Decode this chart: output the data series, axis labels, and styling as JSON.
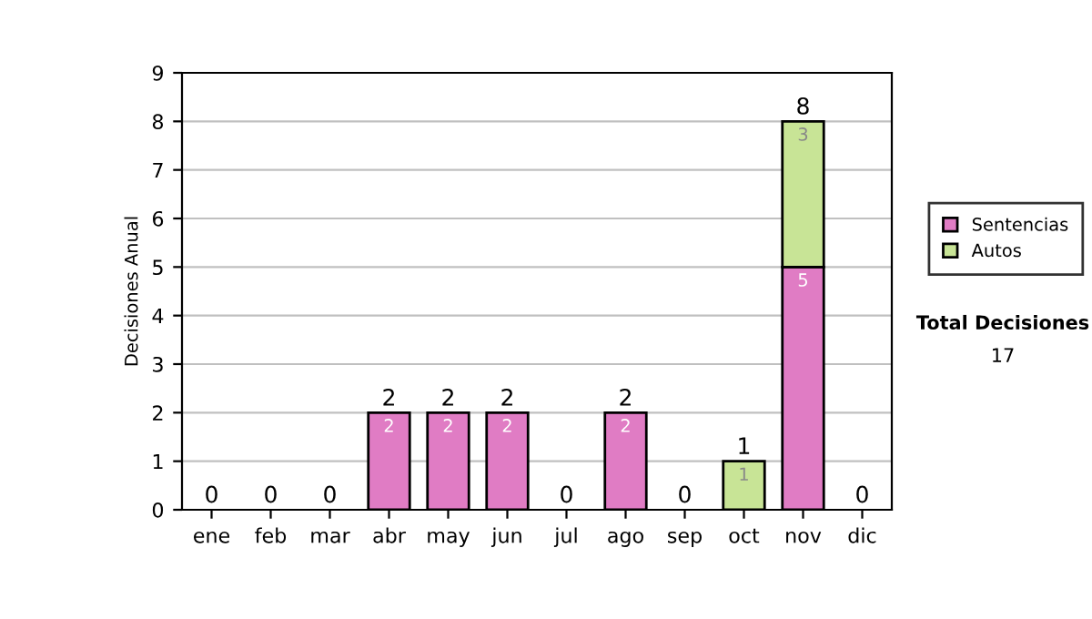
{
  "chart_data": {
    "type": "bar",
    "stacked": true,
    "ylabel": "Decisiones Anual",
    "categories": [
      "ene",
      "feb",
      "mar",
      "abr",
      "may",
      "jun",
      "jul",
      "ago",
      "sep",
      "oct",
      "nov",
      "dic"
    ],
    "series": [
      {
        "name": "Sentencias",
        "color": "#e07cc4",
        "values": [
          0,
          0,
          0,
          2,
          2,
          2,
          0,
          2,
          0,
          0,
          5,
          0
        ],
        "value_labels": [
          null,
          null,
          null,
          "2",
          "2",
          "2",
          null,
          "2",
          null,
          null,
          "5",
          null
        ]
      },
      {
        "name": "Autos",
        "color": "#c8e496",
        "values": [
          0,
          0,
          0,
          0,
          0,
          0,
          0,
          0,
          0,
          1,
          3,
          0
        ],
        "value_labels": [
          null,
          null,
          null,
          null,
          null,
          null,
          null,
          null,
          null,
          "1",
          "3",
          null
        ]
      }
    ],
    "totals": [
      "0",
      "0",
      "0",
      "2",
      "2",
      "2",
      "0",
      "2",
      "0",
      "1",
      "8",
      "0"
    ],
    "ylim": [
      0,
      9
    ],
    "yticks": [
      0,
      1,
      2,
      3,
      4,
      5,
      6,
      7,
      8,
      9
    ],
    "grid": "y",
    "legend": "right",
    "annotations": [
      "Total Decisiones",
      "17"
    ]
  }
}
